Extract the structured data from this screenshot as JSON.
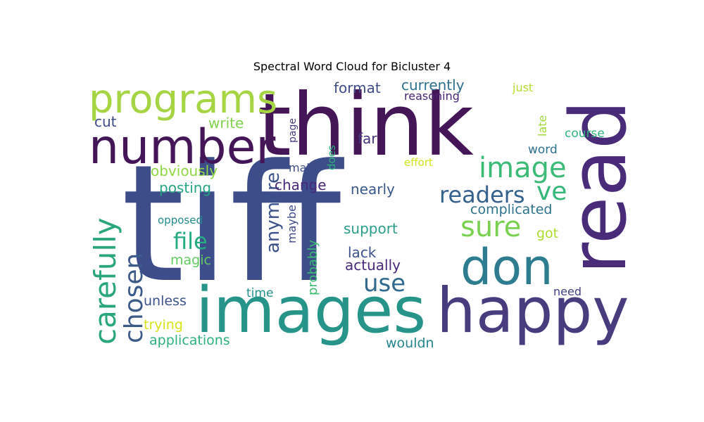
{
  "title": "Spectral Word Cloud for Bicluster 4",
  "words": [
    {
      "text": "tiff",
      "color": "#3c4d8a"
    },
    {
      "text": "think",
      "color": "#451657"
    },
    {
      "text": "read",
      "color": "#4a2b7a"
    },
    {
      "text": "images",
      "color": "#27948a"
    },
    {
      "text": "happy",
      "color": "#483c7f"
    },
    {
      "text": "number",
      "color": "#451657"
    },
    {
      "text": "don",
      "color": "#2d7c8f"
    },
    {
      "text": "programs",
      "color": "#a6d544"
    },
    {
      "text": "carefully",
      "color": "#2aa67f"
    },
    {
      "text": "chosen",
      "color": "#3c5a8a"
    },
    {
      "text": "image",
      "color": "#3bbb76"
    },
    {
      "text": "sure",
      "color": "#7ad151"
    },
    {
      "text": "ve",
      "color": "#35b779"
    },
    {
      "text": "readers",
      "color": "#34618d"
    },
    {
      "text": "use",
      "color": "#31688e"
    },
    {
      "text": "file",
      "color": "#25ac82"
    },
    {
      "text": "anymore",
      "color": "#3b528b"
    },
    {
      "text": "format",
      "color": "#3e4c8a"
    },
    {
      "text": "currently",
      "color": "#2d718e"
    },
    {
      "text": "reasoning",
      "color": "#482475"
    },
    {
      "text": "just",
      "color": "#b5de2b"
    },
    {
      "text": "late",
      "color": "#a0da39"
    },
    {
      "text": "course",
      "color": "#2fb47c"
    },
    {
      "text": "word",
      "color": "#2e6f8e"
    },
    {
      "text": "cut",
      "color": "#3e4989"
    },
    {
      "text": "write",
      "color": "#7fd34e"
    },
    {
      "text": "far",
      "color": "#46327e"
    },
    {
      "text": "page",
      "color": "#433e85"
    },
    {
      "text": "does",
      "color": "#2ab07f"
    },
    {
      "text": "obviously",
      "color": "#8fd744"
    },
    {
      "text": "make",
      "color": "#3d4e8a"
    },
    {
      "text": "effort",
      "color": "#d2e21b"
    },
    {
      "text": "posting",
      "color": "#25a584"
    },
    {
      "text": "change",
      "color": "#482878"
    },
    {
      "text": "nearly",
      "color": "#38598c"
    },
    {
      "text": "complicated",
      "color": "#2c728e"
    },
    {
      "text": "opposed",
      "color": "#228c8d"
    },
    {
      "text": "maybe",
      "color": "#3e4a89"
    },
    {
      "text": "support",
      "color": "#2a9d8c"
    },
    {
      "text": "got",
      "color": "#addc30"
    },
    {
      "text": "magic",
      "color": "#62cb5f"
    },
    {
      "text": "probably",
      "color": "#3dbc74"
    },
    {
      "text": "lack",
      "color": "#3b528b"
    },
    {
      "text": "actually",
      "color": "#482979"
    },
    {
      "text": "time",
      "color": "#21918c"
    },
    {
      "text": "unless",
      "color": "#3b528b"
    },
    {
      "text": "need",
      "color": "#424086"
    },
    {
      "text": "trying",
      "color": "#d8e219"
    },
    {
      "text": "applications",
      "color": "#2db27d"
    },
    {
      "text": "wouldn",
      "color": "#24868e"
    }
  ]
}
